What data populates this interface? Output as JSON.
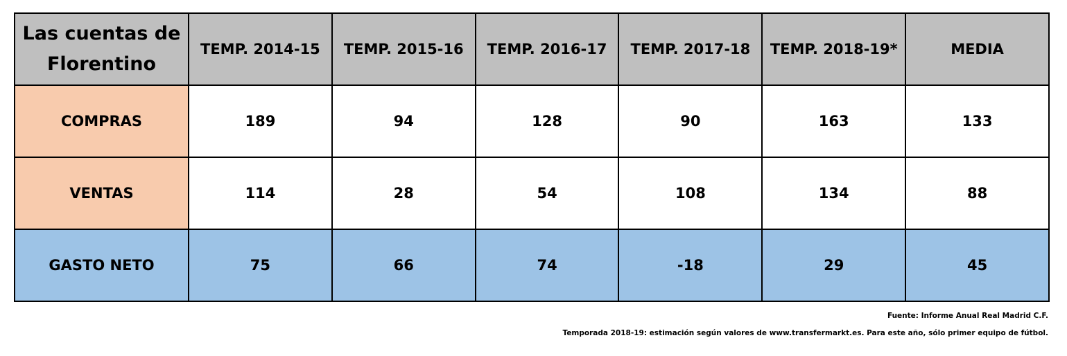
{
  "table": {
    "title": "Las cuentas de Florentino",
    "columns": [
      "TEMP. 2014-15",
      "TEMP. 2015-16",
      "TEMP. 2016-17",
      "TEMP. 2017-18",
      "TEMP. 2018-19*",
      "MEDIA"
    ],
    "rows": [
      {
        "label": "COMPRAS",
        "values": [
          189,
          94,
          128,
          90,
          163,
          133
        ]
      },
      {
        "label": "VENTAS",
        "values": [
          114,
          28,
          54,
          108,
          134,
          88
        ]
      },
      {
        "label": "GASTO NETO",
        "values": [
          75,
          66,
          74,
          -18,
          29,
          45
        ]
      }
    ]
  },
  "notes": [
    "Fuente: Informe Anual Real Madrid C.F.",
    "Temporada 2018-19: estimación según valores de www.transfermarkt.es. Para este año, sólo primer equipo de fútbol."
  ]
}
